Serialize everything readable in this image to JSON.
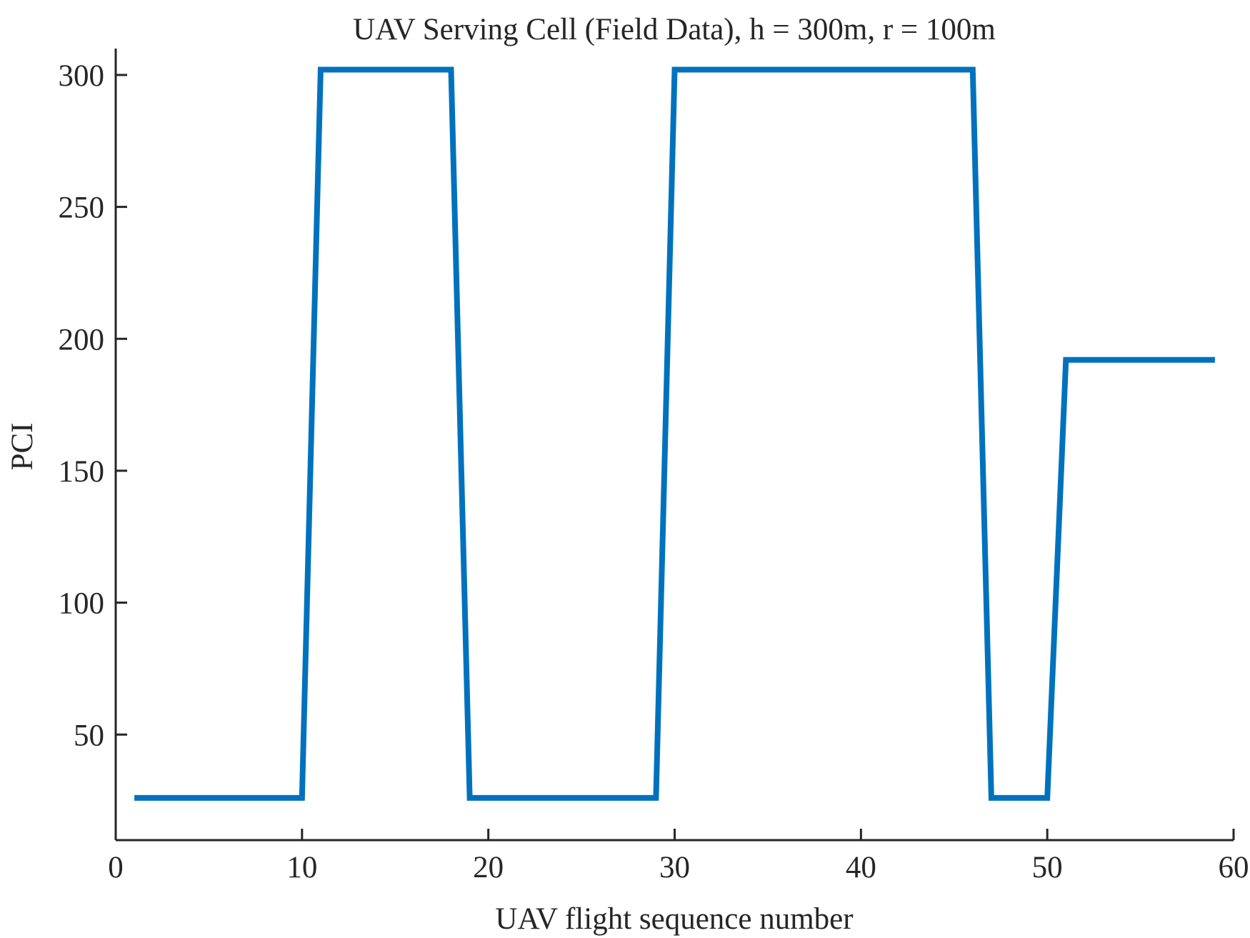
{
  "chart_data": {
    "type": "line",
    "title": "UAV Serving Cell (Field Data), h = 300m, r = 100m",
    "xlabel": "UAV flight sequence number",
    "ylabel": "PCI",
    "xlim": [
      0,
      60
    ],
    "ylim": [
      10,
      310
    ],
    "xticks": [
      0,
      10,
      20,
      30,
      40,
      50,
      60
    ],
    "yticks": [
      50,
      100,
      150,
      200,
      250,
      300
    ],
    "grid": false,
    "series": [
      {
        "color": "#0072BD",
        "x": [
          1,
          10,
          11,
          18,
          19,
          29,
          30,
          46,
          47,
          50,
          51,
          59
        ],
        "y": [
          26,
          26,
          302,
          302,
          26,
          26,
          302,
          302,
          26,
          26,
          192,
          192
        ]
      }
    ]
  }
}
